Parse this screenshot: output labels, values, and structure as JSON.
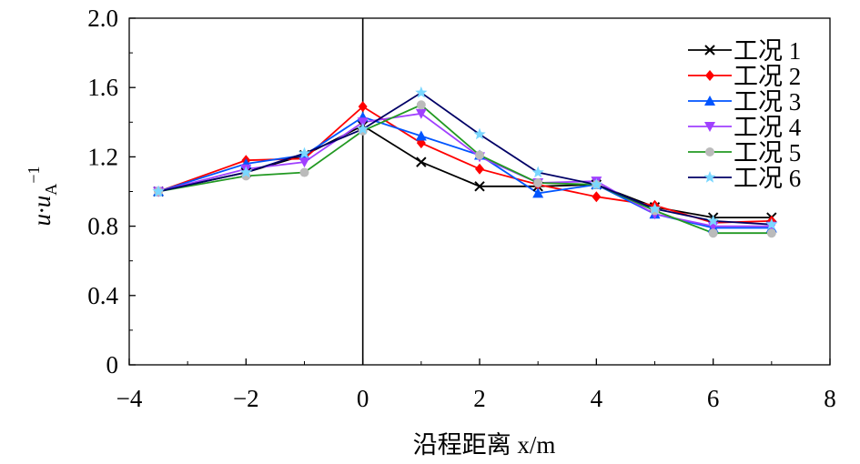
{
  "chart_data": {
    "type": "line",
    "xlabel": "沿程距离 x/m",
    "ylabel": "u·u_A^-1",
    "ylabel_parts": {
      "base": "u·u",
      "sub": "A",
      "sup": "−1"
    },
    "xlim": [
      -4,
      8
    ],
    "ylim": [
      0,
      2.0
    ],
    "x_ticks": [
      -4,
      -2,
      0,
      2,
      4,
      6,
      8
    ],
    "x_tick_labels": [
      "−4",
      "−2",
      "0",
      "2",
      "4",
      "6",
      "8"
    ],
    "y_ticks": [
      0,
      0.4,
      0.8,
      1.2,
      1.6,
      2.0
    ],
    "y_tick_labels": [
      "0",
      "0.4",
      "0.8",
      "1.2",
      "1.6",
      "2.0"
    ],
    "reference_line_x": 0,
    "legend_position": "top-right",
    "x": [
      -3.5,
      -2,
      -1,
      0,
      1,
      2,
      3,
      4,
      5,
      6,
      7
    ],
    "series": [
      {
        "name": "工况 1",
        "color": "#000000",
        "marker": "x",
        "values": [
          1.0,
          1.11,
          1.21,
          1.38,
          1.17,
          1.03,
          1.03,
          1.04,
          0.91,
          0.85,
          0.85
        ]
      },
      {
        "name": "工况 2",
        "color": "#ff0000",
        "marker": "diamond",
        "values": [
          1.0,
          1.18,
          1.19,
          1.49,
          1.28,
          1.13,
          1.04,
          0.97,
          0.92,
          0.82,
          0.83
        ]
      },
      {
        "name": "工况 3",
        "color": "#0055ff",
        "marker": "triangle-up",
        "values": [
          1.0,
          1.16,
          1.21,
          1.43,
          1.32,
          1.21,
          0.99,
          1.04,
          0.87,
          0.79,
          0.79
        ]
      },
      {
        "name": "工况 4",
        "color": "#a040ff",
        "marker": "triangle-down",
        "values": [
          1.0,
          1.13,
          1.17,
          1.4,
          1.45,
          1.2,
          1.05,
          1.06,
          0.87,
          0.8,
          0.8
        ]
      },
      {
        "name": "工况 5",
        "color": "#229922",
        "marker": "circle",
        "values": [
          1.0,
          1.09,
          1.11,
          1.35,
          1.5,
          1.21,
          1.05,
          1.04,
          0.89,
          0.76,
          0.76
        ]
      },
      {
        "name": "工况 6",
        "color": "#000066",
        "marker": "star",
        "values": [
          1.0,
          1.11,
          1.22,
          1.36,
          1.57,
          1.33,
          1.11,
          1.04,
          0.9,
          0.83,
          0.81
        ]
      }
    ]
  }
}
